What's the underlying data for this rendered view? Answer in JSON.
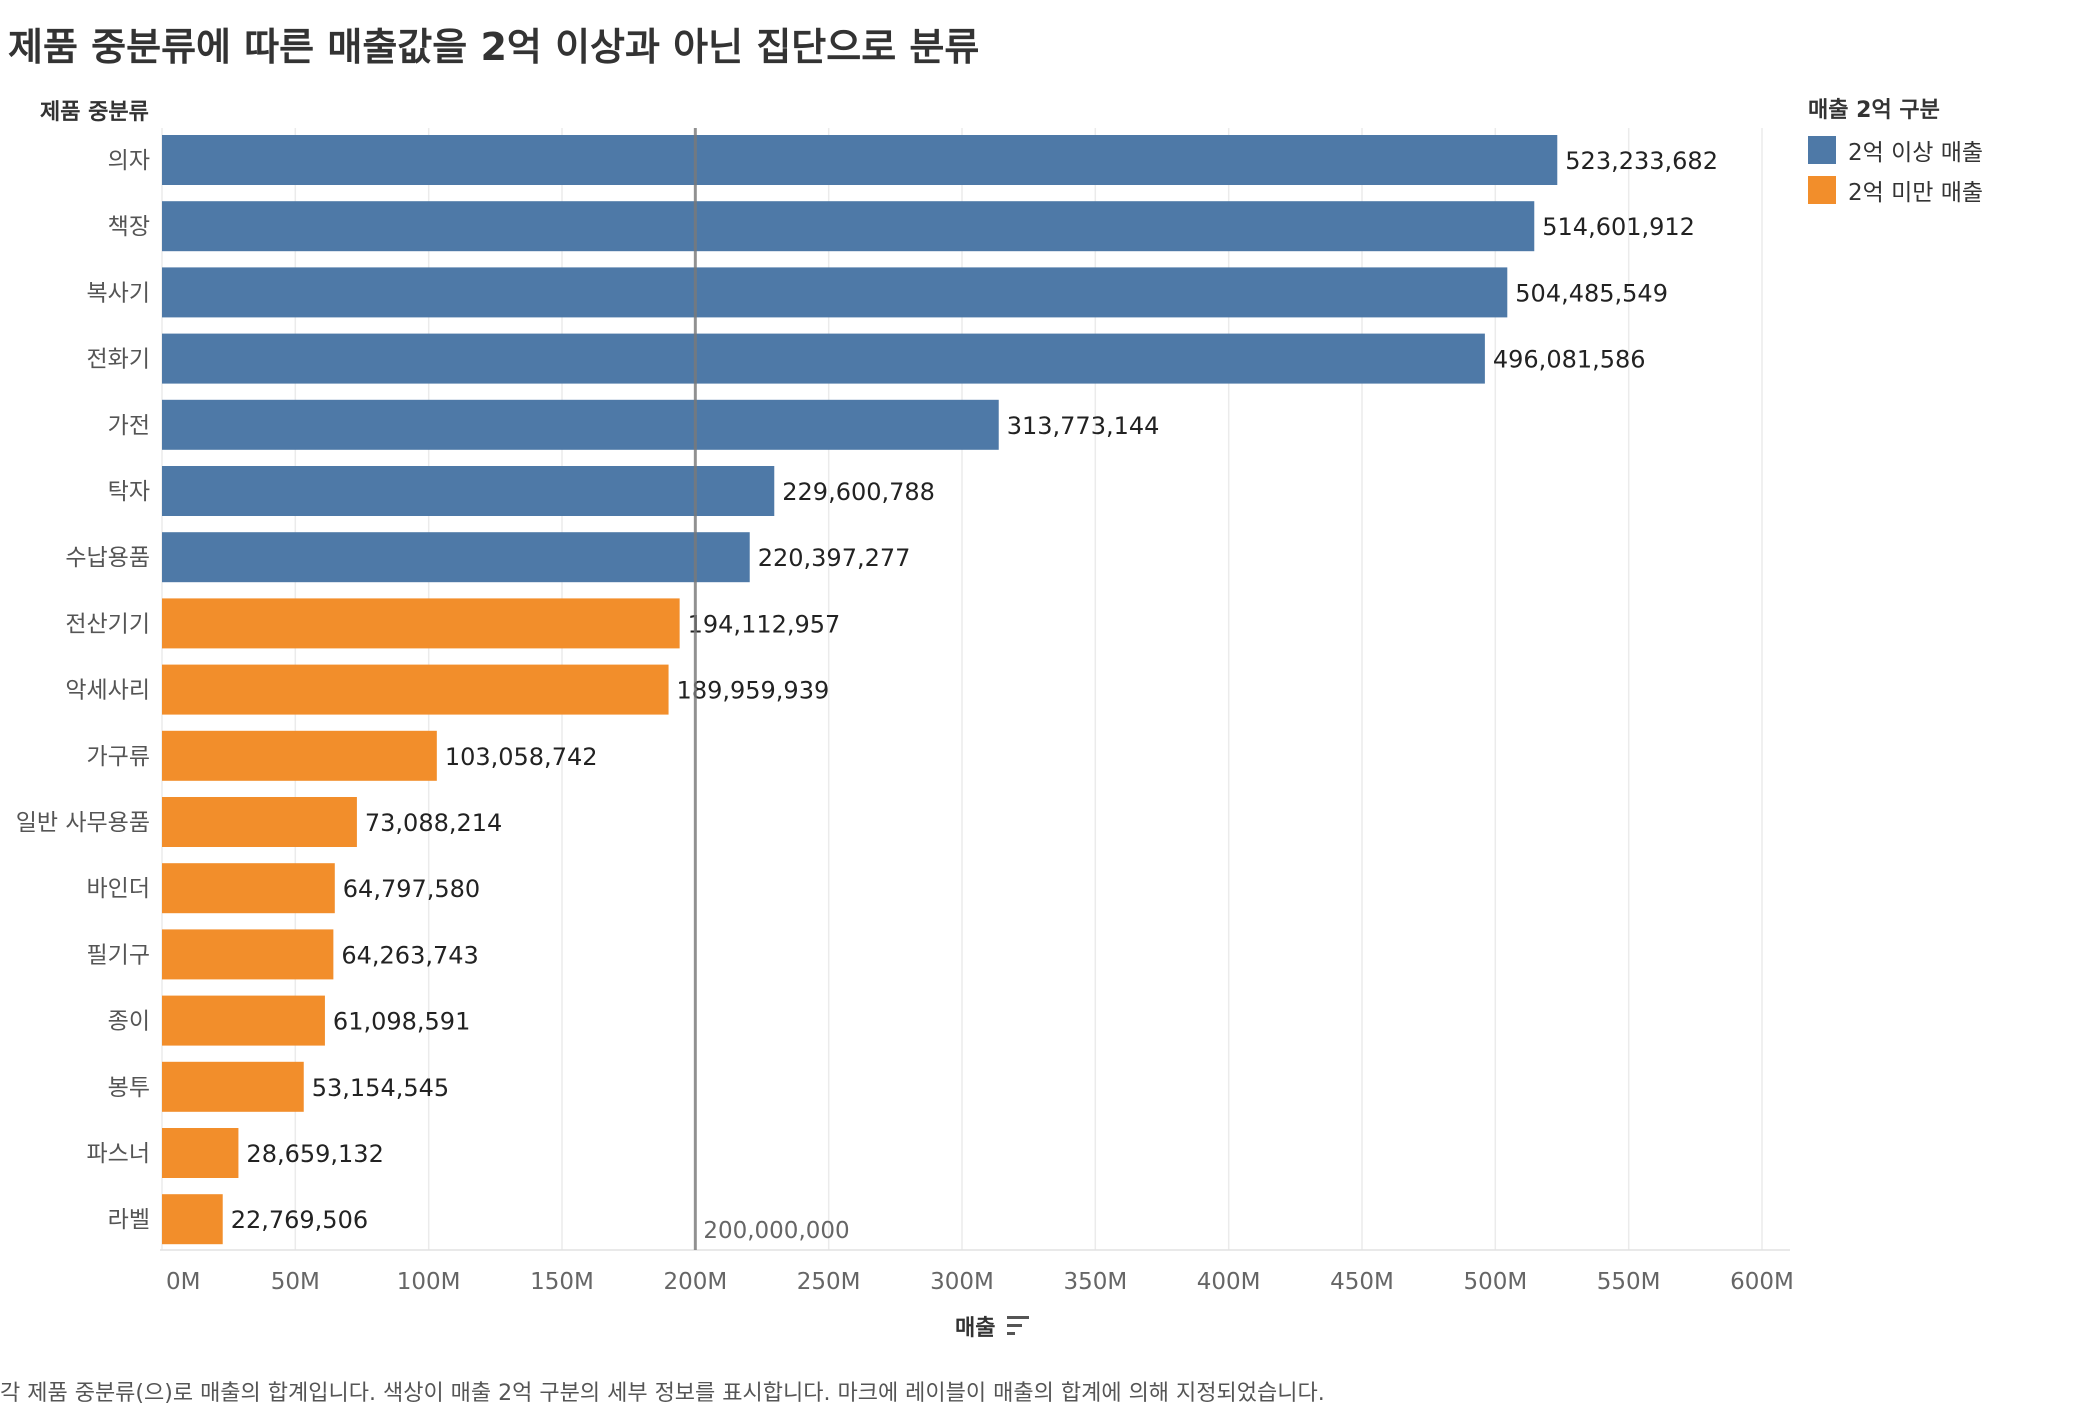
{
  "title": "제품 중분류에 따른 매출값을 2억 이상과 아닌 집단으로 분류",
  "row_header": "제품 중분류",
  "x_axis_title": "매출",
  "caption": "각 제품 중분류(으)로 매출의 합계입니다. 색상이 매출 2억 구분의 세부 정보를 표시합니다. 마크에 레이블이 매출의 합계에 의해 지정되었습니다.",
  "legend": {
    "title": "매출 2억 구분",
    "items": [
      {
        "label": "2억 이상 매출",
        "color": "#4e79a7"
      },
      {
        "label": "2억 미만 매출",
        "color": "#f28e2b"
      }
    ]
  },
  "icons": {
    "sort": "sort-descending-icon"
  },
  "chart_data": {
    "type": "bar",
    "orientation": "horizontal",
    "categories": [
      "의자",
      "책장",
      "복사기",
      "전화기",
      "가전",
      "탁자",
      "수납용품",
      "전산기기",
      "악세사리",
      "가구류",
      "일반 사무용품",
      "바인더",
      "필기구",
      "종이",
      "봉투",
      "파스너",
      "라벨"
    ],
    "values": [
      523233682,
      514601912,
      504485549,
      496081586,
      313773144,
      229600788,
      220397277,
      194112957,
      189959939,
      103058742,
      73088214,
      64797580,
      64263743,
      61098591,
      53154545,
      28659132,
      22769506
    ],
    "value_labels": [
      "523,233,682",
      "514,601,912",
      "504,485,549",
      "496,081,586",
      "313,773,144",
      "229,600,788",
      "220,397,277",
      "194,112,957",
      "189,959,939",
      "103,058,742",
      "73,088,214",
      "64,797,580",
      "64,263,743",
      "61,098,591",
      "53,154,545",
      "28,659,132",
      "22,769,506"
    ],
    "groups": [
      "2억 이상 매출",
      "2억 이상 매출",
      "2억 이상 매출",
      "2억 이상 매출",
      "2억 이상 매출",
      "2억 이상 매출",
      "2억 이상 매출",
      "2억 미만 매출",
      "2억 미만 매출",
      "2억 미만 매출",
      "2억 미만 매출",
      "2억 미만 매출",
      "2억 미만 매출",
      "2억 미만 매출",
      "2억 미만 매출",
      "2억 미만 매출",
      "2억 미만 매출"
    ],
    "xlim": [
      0,
      610000000
    ],
    "x_ticks": [
      0,
      50000000,
      100000000,
      150000000,
      200000000,
      250000000,
      300000000,
      350000000,
      400000000,
      450000000,
      500000000,
      550000000,
      600000000
    ],
    "x_tick_labels": [
      "0M",
      "50M",
      "100M",
      "150M",
      "200M",
      "250M",
      "300M",
      "350M",
      "400M",
      "450M",
      "500M",
      "550M",
      "600M"
    ],
    "reference_line": {
      "value": 200000000,
      "label": "200,000,000"
    },
    "grid": true,
    "legend_position": "right"
  }
}
